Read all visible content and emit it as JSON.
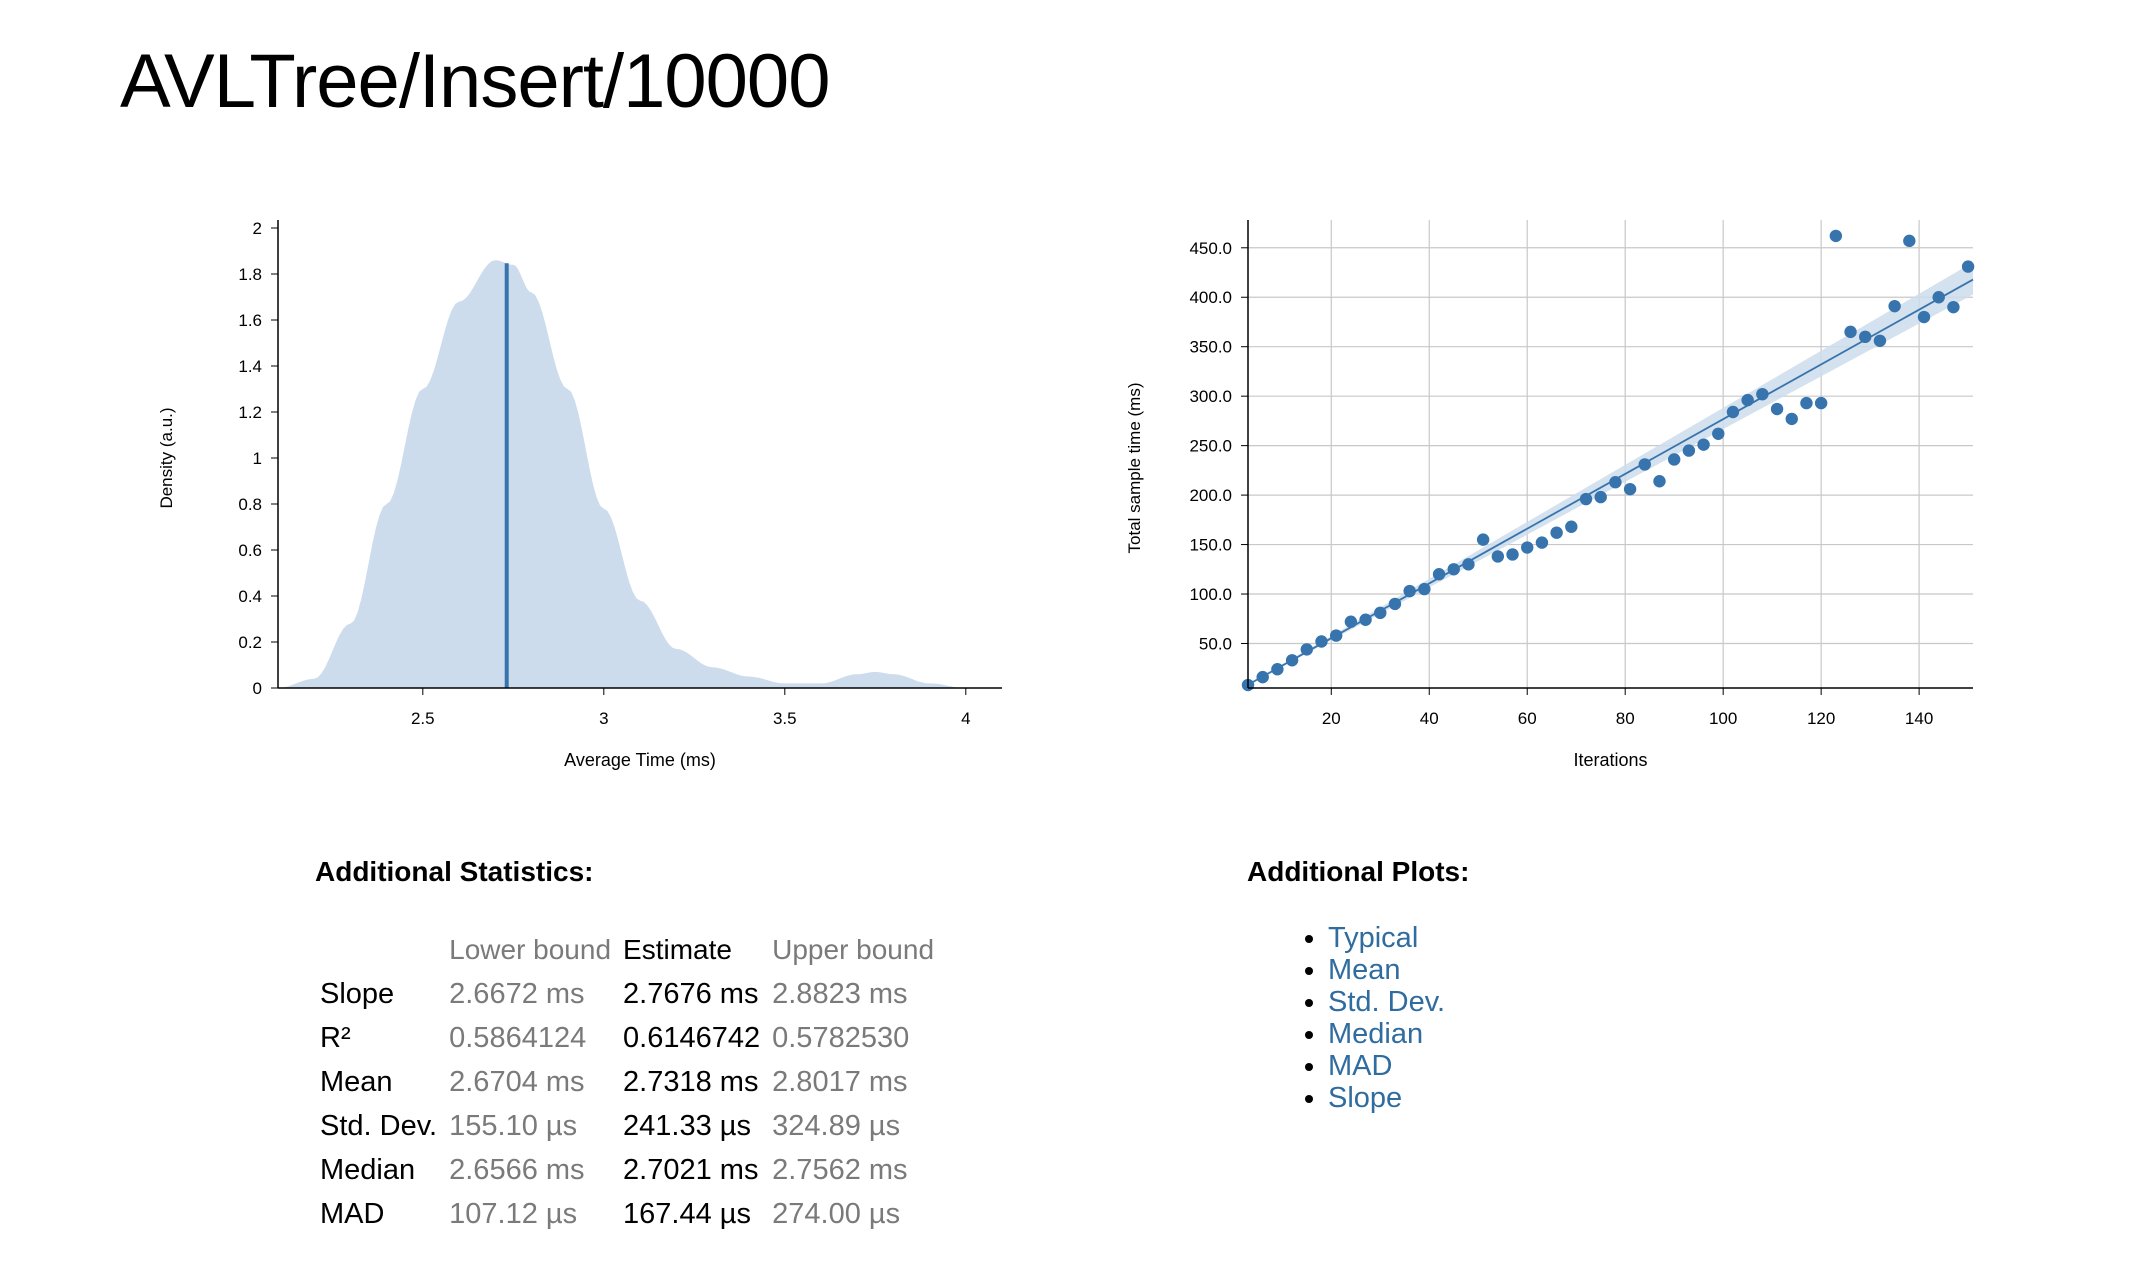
{
  "page": {
    "title": "AVLTree/Insert/10000"
  },
  "colors": {
    "accent": "#3774ad",
    "fill": "#cddcec",
    "link": "#2f6c9f",
    "muted": "#7a7a7a"
  },
  "chart_data": [
    {
      "type": "area",
      "xlabel": "Average Time (ms)",
      "ylabel": "Density (a.u.)",
      "xlim": [
        2.1,
        4.1
      ],
      "ylim": [
        0,
        2
      ],
      "x_ticks": [
        "2.5",
        "3",
        "3.5",
        "4"
      ],
      "y_ticks": [
        "0",
        "0.2",
        "0.4",
        "0.6",
        "0.8",
        "1",
        "1.2",
        "1.4",
        "1.6",
        "1.8",
        "2"
      ],
      "x": [
        2.1,
        2.2,
        2.3,
        2.4,
        2.5,
        2.6,
        2.7,
        2.75,
        2.8,
        2.9,
        3.0,
        3.1,
        3.2,
        3.3,
        3.4,
        3.5,
        3.6,
        3.7,
        3.75,
        3.8,
        3.9,
        4.0
      ],
      "values": [
        0.0,
        0.04,
        0.28,
        0.8,
        1.3,
        1.68,
        1.86,
        1.84,
        1.72,
        1.3,
        0.78,
        0.38,
        0.17,
        0.09,
        0.05,
        0.02,
        0.02,
        0.06,
        0.07,
        0.06,
        0.02,
        0.0
      ],
      "mean_line": 2.7318
    },
    {
      "type": "scatter",
      "xlabel": "Iterations",
      "ylabel": "Total sample time (ms)",
      "xlim": [
        3,
        151
      ],
      "ylim": [
        5,
        470
      ],
      "x_ticks": [
        "20",
        "40",
        "60",
        "80",
        "100",
        "120",
        "140"
      ],
      "y_ticks": [
        "50.0",
        "100.0",
        "150.0",
        "200.0",
        "250.0",
        "300.0",
        "350.0",
        "400.0",
        "450.0"
      ],
      "x": [
        3,
        6,
        9,
        12,
        15,
        18,
        21,
        24,
        27,
        30,
        33,
        36,
        39,
        42,
        45,
        48,
        51,
        54,
        57,
        60,
        63,
        66,
        69,
        72,
        75,
        78,
        81,
        84,
        87,
        90,
        93,
        96,
        99,
        102,
        105,
        108,
        111,
        114,
        117,
        120,
        123,
        126,
        129,
        132,
        135,
        138,
        141,
        144,
        147,
        150
      ],
      "values": [
        8,
        16,
        24,
        33,
        44,
        52,
        58,
        72,
        74,
        81,
        90,
        103,
        105,
        120,
        125,
        130,
        155,
        138,
        140,
        147,
        152,
        162,
        168,
        196,
        198,
        213,
        206,
        231,
        214,
        236,
        245,
        251,
        262,
        284,
        296,
        302,
        287,
        277,
        293,
        293,
        462,
        365,
        360,
        356,
        391,
        457,
        380,
        400,
        390,
        431
      ],
      "fit_slope": 2.7676,
      "ci_lower_slope": 2.6672,
      "ci_upper_slope": 2.8823
    }
  ],
  "stats": {
    "heading": "Additional Statistics:",
    "columns": [
      "",
      "Lower bound",
      "Estimate",
      "Upper bound"
    ],
    "rows": [
      {
        "label": "Slope",
        "lower": "2.6672 ms",
        "estimate": "2.7676 ms",
        "upper": "2.8823 ms"
      },
      {
        "label": "R²",
        "lower": "0.5864124",
        "estimate": "0.6146742",
        "upper": "0.5782530"
      },
      {
        "label": "Mean",
        "lower": "2.6704 ms",
        "estimate": "2.7318 ms",
        "upper": "2.8017 ms"
      },
      {
        "label": "Std. Dev.",
        "lower": "155.10 µs",
        "estimate": "241.33 µs",
        "upper": "324.89 µs"
      },
      {
        "label": "Median",
        "lower": "2.6566 ms",
        "estimate": "2.7021 ms",
        "upper": "2.7562 ms"
      },
      {
        "label": "MAD",
        "lower": "107.12 µs",
        "estimate": "167.44 µs",
        "upper": "274.00 µs"
      }
    ]
  },
  "plots": {
    "heading": "Additional Plots:",
    "links": [
      "Typical",
      "Mean",
      "Std. Dev.",
      "Median",
      "MAD",
      "Slope"
    ]
  }
}
